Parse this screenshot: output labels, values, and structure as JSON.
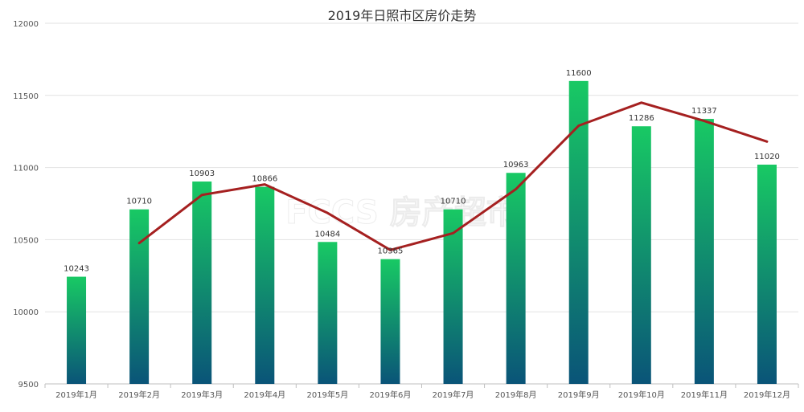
{
  "chart_data": {
    "type": "bar",
    "title": "2019年日照市区房价走势",
    "categories": [
      "2019年1月",
      "2019年2月",
      "2019年3月",
      "2019年4月",
      "2019年5月",
      "2019年6月",
      "2019年7月",
      "2019年8月",
      "2019年9月",
      "2019年10月",
      "2019年11月",
      "2019年12月"
    ],
    "series": [
      {
        "type": "bar",
        "values": [
          10243,
          10710,
          10903,
          10866,
          10484,
          10365,
          10710,
          10963,
          11600,
          11286,
          11337,
          11020
        ]
      },
      {
        "type": "line",
        "values": [
          null,
          10476,
          10810,
          10883,
          10685,
          10428,
          10545,
          10850,
          11290,
          11450,
          11323,
          11180
        ]
      }
    ],
    "data_labels": [
      "10243",
      "10710",
      "10903",
      "10866",
      "10484",
      "10365",
      "10710",
      "10963",
      "11600",
      "11286",
      "11337",
      "11020"
    ],
    "ylim": [
      9500,
      12000
    ],
    "yticks": [
      9500,
      10000,
      10500,
      11000,
      11500,
      12000
    ],
    "grid": true,
    "colors": {
      "bar_top": "#18c964",
      "bar_bottom": "#0a5478",
      "line": "#a52020",
      "grid": "#e2e2e2",
      "text": "#555555"
    },
    "watermark": "FCCS 房产超市"
  }
}
